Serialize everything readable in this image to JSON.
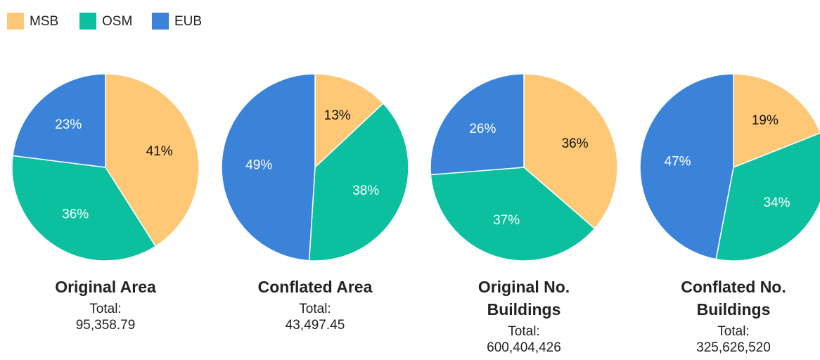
{
  "chart_data": [
    {
      "type": "pie",
      "title": "Original Area",
      "total_label": "Total:",
      "total": "95,358.79",
      "categories": [
        "MSB",
        "OSM",
        "EUB"
      ],
      "values": [
        41,
        36,
        23
      ],
      "value_labels": [
        "41%",
        "36%",
        "23%"
      ],
      "colors": [
        "#fec877",
        "#0bbf9f",
        "#3b83d9"
      ]
    },
    {
      "type": "pie",
      "title": "Conflated Area",
      "total_label": "Total:",
      "total": "43,497.45",
      "categories": [
        "MSB",
        "OSM",
        "EUB"
      ],
      "values": [
        13,
        38,
        49
      ],
      "value_labels": [
        "13%",
        "38%",
        "49%"
      ],
      "colors": [
        "#fec877",
        "#0bbf9f",
        "#3b83d9"
      ]
    },
    {
      "type": "pie",
      "title": "Original No. Buildings",
      "total_label": "Total:",
      "total": "600,404,426",
      "categories": [
        "MSB",
        "OSM",
        "EUB"
      ],
      "values": [
        36,
        37,
        26
      ],
      "value_labels": [
        "36%",
        "37%",
        "26%"
      ],
      "colors": [
        "#fec877",
        "#0bbf9f",
        "#3b83d9"
      ]
    },
    {
      "type": "pie",
      "title": "Conflated No. Buildings",
      "total_label": "Total:",
      "total": "325,626,520",
      "categories": [
        "MSB",
        "OSM",
        "EUB"
      ],
      "values": [
        19,
        34,
        47
      ],
      "value_labels": [
        "19%",
        "34%",
        "47%"
      ],
      "colors": [
        "#fec877",
        "#0bbf9f",
        "#3b83d9"
      ]
    }
  ]
}
